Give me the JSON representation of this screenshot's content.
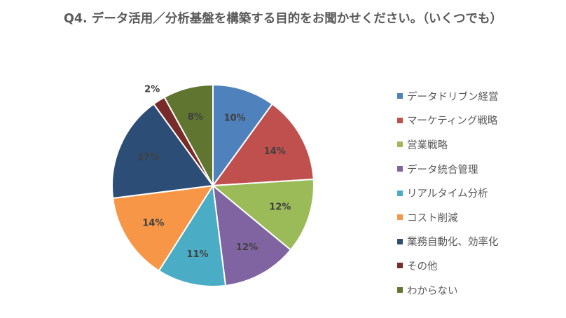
{
  "chart_data": {
    "type": "pie",
    "title": "Q4. データ活用／分析基盤を構築する目的をお聞かせください。（いくつでも）",
    "categories": [
      "データドリブン経営",
      "マーケティング戦略",
      "営業戦略",
      "データ統合管理",
      "リアルタイム分析",
      "コスト削減",
      "業務自動化、効率化",
      "その他",
      "わからない"
    ],
    "values": [
      10,
      14,
      12,
      12,
      11,
      14,
      17,
      2,
      8
    ],
    "labels": [
      "10%",
      "14%",
      "12%",
      "12%",
      "11%",
      "14%",
      "17%",
      "2%",
      "8%"
    ],
    "colors": [
      "#4F81BD",
      "#C0504D",
      "#9BBB59",
      "#8064A2",
      "#4BACC6",
      "#F79646",
      "#2C4D75",
      "#772C2A",
      "#5F7530"
    ],
    "label_colors": [
      "#404040",
      "#404040",
      "#404040",
      "#404040",
      "#404040",
      "#404040",
      "#404040",
      "#404040",
      "#404040"
    ],
    "legend_position": "right"
  }
}
